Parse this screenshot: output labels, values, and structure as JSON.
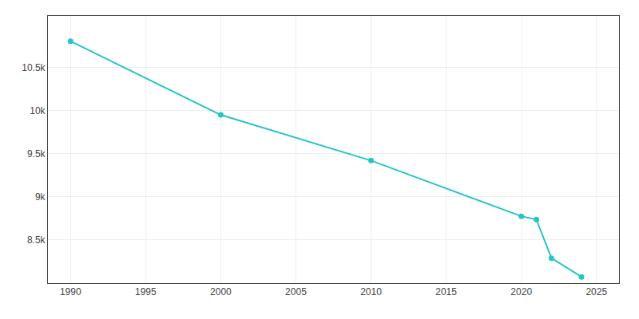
{
  "chart_data": {
    "type": "line",
    "x": [
      1990,
      2000,
      2010,
      2020,
      2021,
      2022,
      2024
    ],
    "values": [
      10807,
      9952,
      9422,
      8776,
      8738,
      8290,
      8072
    ],
    "color": "#29c4c4",
    "marker": "circle",
    "line_style": "solid",
    "xlim": [
      1988.5,
      2026.5
    ],
    "ylim": [
      8000,
      11100
    ],
    "xticks": [
      1990,
      1995,
      2000,
      2005,
      2010,
      2015,
      2020,
      2025
    ],
    "yticks": [
      {
        "value": 8500,
        "label": "8.5k"
      },
      {
        "value": 9000,
        "label": "9k"
      },
      {
        "value": 9500,
        "label": "9.5k"
      },
      {
        "value": 10000,
        "label": "10k"
      },
      {
        "value": 10500,
        "label": "10.5k"
      }
    ],
    "grid": true
  }
}
